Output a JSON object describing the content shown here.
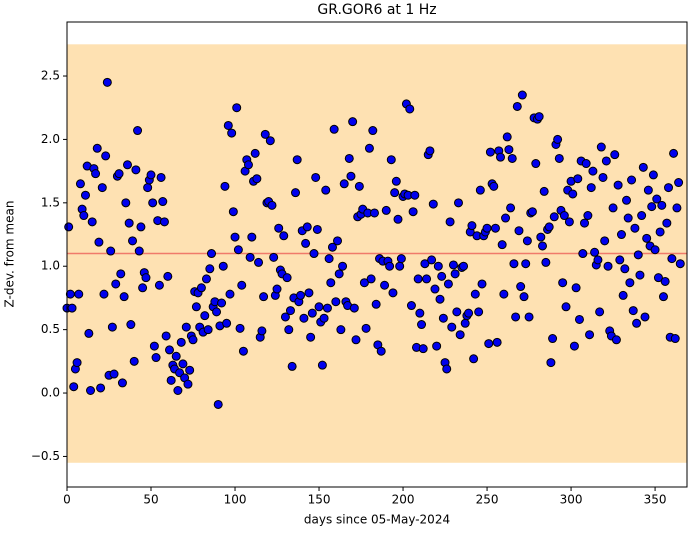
{
  "chart_data": {
    "type": "scatter",
    "title": "GR.GOR6 at 1 Hz",
    "xlabel": "days since 05-May-2024",
    "ylabel": "Z-dev. from mean",
    "color": "#0000ee",
    "edge_color": "#000000",
    "band": [
      -0.55,
      2.75
    ],
    "band_color": "#fee1b2",
    "mean": 1.1,
    "mean_color": "#f07a6a",
    "xlim": [
      0,
      369
    ],
    "ylim": [
      -0.741,
      2.926
    ],
    "xticks": [
      0,
      50,
      100,
      150,
      200,
      250,
      300,
      350
    ],
    "yticks": [
      {
        "value": -0.5,
        "label": "−0.5"
      },
      {
        "value": 0,
        "label": "0.0"
      },
      0.5,
      {
        "value": 1,
        "label": "1.0"
      },
      1.5,
      {
        "value": 2,
        "label": "2.0"
      },
      2.5
    ],
    "x": [
      0,
      1,
      2,
      3,
      4,
      5,
      6,
      7,
      8,
      9,
      10,
      11,
      12,
      13,
      14,
      15,
      16,
      17,
      18,
      19,
      20,
      21,
      22,
      23,
      24,
      25,
      26,
      27,
      28,
      29,
      30,
      31,
      32,
      33,
      34,
      35,
      36,
      37,
      38,
      39,
      40,
      41,
      42,
      43,
      44,
      45,
      46,
      47,
      48,
      49,
      50,
      51,
      52,
      53,
      54,
      55,
      56,
      57,
      58,
      59,
      60,
      61,
      62,
      63,
      64,
      65,
      66,
      67,
      68,
      69,
      70,
      71,
      72,
      73,
      74,
      75,
      76,
      77,
      78,
      79,
      80,
      81,
      82,
      83,
      84,
      85,
      86,
      87,
      88,
      89,
      90,
      91,
      92,
      93,
      94,
      95,
      96,
      97,
      98,
      99,
      100,
      101,
      102,
      103,
      104,
      105,
      106,
      107,
      108,
      109,
      110,
      111,
      112,
      113,
      114,
      115,
      116,
      117,
      118,
      119,
      120,
      121,
      122,
      123,
      124,
      125,
      126,
      127,
      128,
      129,
      130,
      131,
      132,
      133,
      134,
      135,
      136,
      137,
      138,
      139,
      140,
      141,
      142,
      143,
      144,
      145,
      146,
      147,
      148,
      149,
      150,
      151,
      152,
      153,
      154,
      155,
      156,
      157,
      158,
      159,
      160,
      161,
      162,
      163,
      164,
      165,
      166,
      167,
      168,
      169,
      170,
      171,
      172,
      173,
      174,
      175,
      176,
      177,
      178,
      179,
      180,
      181,
      182,
      183,
      184,
      185,
      186,
      187,
      188,
      189,
      190,
      191,
      192,
      193,
      194,
      195,
      196,
      197,
      198,
      199,
      200,
      201,
      202,
      203,
      204,
      205,
      206,
      207,
      208,
      209,
      210,
      211,
      212,
      213,
      214,
      215,
      216,
      217,
      218,
      219,
      220,
      221,
      222,
      223,
      224,
      225,
      226,
      227,
      228,
      229,
      230,
      231,
      232,
      233,
      234,
      235,
      236,
      237,
      238,
      239,
      240,
      241,
      242,
      243,
      244,
      245,
      246,
      247,
      248,
      249,
      250,
      251,
      252,
      253,
      254,
      255,
      256,
      257,
      258,
      259,
      260,
      261,
      262,
      263,
      264,
      265,
      266,
      267,
      268,
      269,
      270,
      271,
      272,
      273,
      274,
      275,
      276,
      277,
      278,
      279,
      280,
      281,
      282,
      283,
      284,
      285,
      286,
      287,
      288,
      289,
      290,
      291,
      292,
      293,
      294,
      295,
      296,
      297,
      298,
      299,
      300,
      301,
      302,
      303,
      304,
      305,
      306,
      307,
      308,
      309,
      310,
      311,
      312,
      313,
      314,
      315,
      316,
      317,
      318,
      319,
      320,
      321,
      322,
      323,
      324,
      325,
      326,
      327,
      328,
      329,
      330,
      331,
      332,
      333,
      334,
      335,
      336,
      337,
      338,
      339,
      340,
      341,
      342,
      343,
      344,
      345,
      346,
      347,
      348,
      349,
      350,
      351,
      352,
      353,
      354,
      355,
      356,
      357,
      358,
      359,
      360,
      361,
      362,
      363,
      364,
      365
    ],
    "values": [
      0.67,
      1.31,
      0.78,
      0.67,
      0.05,
      0.19,
      0.24,
      0.78,
      1.65,
      1.45,
      1.4,
      1.56,
      1.79,
      0.47,
      0.02,
      1.35,
      1.77,
      1.73,
      1.93,
      1.19,
      0.04,
      1.62,
      0.78,
      1.87,
      2.45,
      0.14,
      1.12,
      0.52,
      0.15,
      0.86,
      1.71,
      1.73,
      0.94,
      0.08,
      0.76,
      1.5,
      1.8,
      1.34,
      0.54,
      1.2,
      0.25,
      1.76,
      2.07,
      1.12,
      1.31,
      0.83,
      0.95,
      0.91,
      1.62,
      1.68,
      1.72,
      1.5,
      0.37,
      0.28,
      1.36,
      0.85,
      1.7,
      1.51,
      1.35,
      0.45,
      0.92,
      0.34,
      0.1,
      0.22,
      0.19,
      0.29,
      0.02,
      0.16,
      0.4,
      0.23,
      0.12,
      0.52,
      0.07,
      0.18,
      0.45,
      0.42,
      0.8,
      0.68,
      0.79,
      0.52,
      0.83,
      0.48,
      0.61,
      0.9,
      0.5,
      0.98,
      1.1,
      0.68,
      0.72,
      0.64,
      -0.09,
      0.53,
      0.71,
      1.0,
      1.63,
      0.55,
      2.11,
      0.78,
      2.05,
      1.43,
      1.23,
      2.25,
      1.13,
      0.51,
      0.85,
      0.33,
      1.75,
      1.84,
      1.8,
      1.07,
      1.23,
      1.67,
      1.89,
      1.69,
      1.03,
      0.44,
      0.49,
      0.76,
      2.04,
      1.5,
      1.51,
      1.99,
      1.48,
      1.07,
      0.77,
      0.82,
      1.3,
      0.97,
      0.94,
      1.24,
      0.6,
      0.91,
      0.5,
      0.65,
      0.21,
      0.75,
      1.58,
      1.84,
      0.72,
      0.77,
      1.28,
      0.59,
      1.18,
      1.31,
      0.79,
      0.44,
      0.63,
      1.1,
      1.7,
      1.29,
      0.68,
      0.56,
      0.22,
      0.59,
      1.6,
      0.67,
      1.06,
      0.87,
      1.15,
      2.08,
      0.72,
      1.2,
      0.94,
      0.5,
      1.0,
      1.65,
      0.72,
      0.69,
      1.85,
      1.71,
      2.14,
      0.67,
      0.42,
      1.39,
      1.63,
      1.41,
      1.45,
      0.87,
      0.51,
      1.42,
      1.93,
      0.9,
      2.07,
      1.42,
      0.7,
      0.38,
      1.06,
      0.33,
      1.04,
      0.85,
      1.44,
      1.04,
      1.0,
      1.84,
      0.79,
      1.58,
      1.67,
      1.37,
      1.0,
      1.06,
      1.55,
      1.57,
      2.28,
      1.56,
      2.24,
      0.69,
      1.43,
      1.56,
      0.36,
      0.9,
      0.63,
      0.54,
      0.35,
      1.02,
      0.9,
      1.88,
      1.91,
      1.05,
      1.49,
      0.82,
      0.37,
      1.0,
      0.74,
      0.92,
      0.59,
      0.24,
      0.19,
      0.86,
      1.35,
      0.52,
      1.01,
      0.94,
      0.64,
      1.5,
      0.46,
      0.99,
      1.0,
      0.55,
      0.61,
      0.63,
      1.27,
      1.32,
      0.27,
      0.78,
      1.24,
      0.64,
      1.6,
      0.86,
      1.24,
      1.27,
      1.3,
      0.39,
      1.9,
      1.65,
      1.63,
      1.3,
      0.4,
      1.91,
      1.86,
      1.17,
      0.78,
      1.38,
      2.02,
      1.92,
      1.46,
      1.85,
      1.02,
      0.6,
      2.26,
      1.28,
      0.84,
      2.35,
      0.76,
      1.02,
      1.2,
      0.6,
      1.42,
      1.43,
      2.17,
      1.81,
      2.16,
      2.18,
      1.23,
      1.16,
      1.59,
      1.03,
      1.29,
      1.31,
      0.24,
      0.43,
      1.39,
      1.96,
      2.0,
      1.85,
      1.44,
      0.87,
      1.4,
      0.68,
      1.6,
      1.35,
      1.67,
      1.57,
      0.37,
      0.83,
      1.69,
      0.58,
      1.83,
      1.1,
      1.34,
      1.81,
      1.4,
      0.46,
      1.62,
      1.75,
      1.11,
      1.01,
      1.05,
      0.64,
      1.94,
      1.7,
      1.2,
      1.83,
      1.0,
      0.49,
      0.45,
      1.46,
      1.88,
      0.42,
      1.64,
      1.05,
      1.25,
      0.77,
      0.98,
      1.52,
      1.38,
      0.87,
      1.68,
      0.65,
      1.3,
      0.55,
      1.09,
      0.93,
      1.4,
      1.78,
      0.6,
      1.22,
      1.6,
      1.16,
      1.47,
      1.72,
      1.13,
      1.53,
      0.91,
      1.27,
      1.48,
      0.76,
      0.88,
      1.34,
      1.62,
      0.44,
      1.06,
      1.89,
      0.43,
      1.46,
      1.66,
      1.02
    ]
  }
}
